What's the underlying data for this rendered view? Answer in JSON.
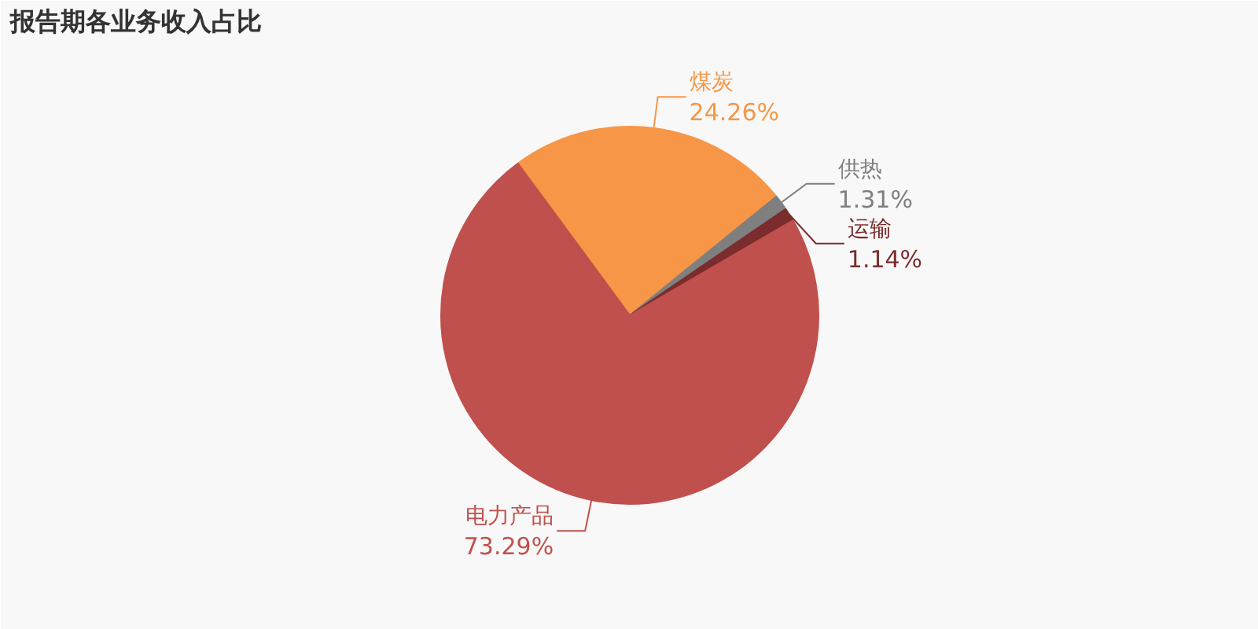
{
  "chart_data": {
    "type": "pie",
    "title": "报告期各业务收入占比",
    "categories": [
      "煤炭",
      "供热",
      "运输",
      "电力产品"
    ],
    "values": [
      24.26,
      1.31,
      1.14,
      73.29
    ],
    "colors": [
      "#f79646",
      "#7f7f7f",
      "#7b2c2c",
      "#c0504d"
    ],
    "value_labels": [
      "24.26%",
      "1.31%",
      "1.14%",
      "73.29%"
    ]
  }
}
